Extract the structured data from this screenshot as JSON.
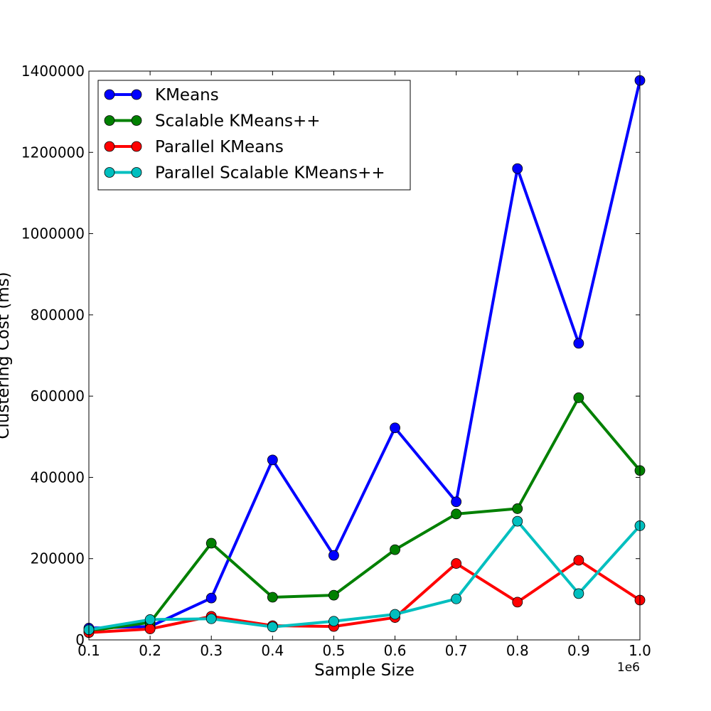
{
  "chart_data": {
    "type": "line",
    "title": "",
    "xlabel": "Sample Size",
    "ylabel": "Clustering Cost (ms)",
    "x_offset_label": "1e6",
    "x": [
      0.1,
      0.2,
      0.3,
      0.4,
      0.5,
      0.6,
      0.7,
      0.8,
      0.9,
      1.0
    ],
    "xlim": [
      0.1,
      1.0
    ],
    "ylim": [
      0,
      1400000
    ],
    "x_ticks": [
      "0.1",
      "0.2",
      "0.3",
      "0.4",
      "0.5",
      "0.6",
      "0.7",
      "0.8",
      "0.9",
      "1.0"
    ],
    "x_tick_values": [
      0.1,
      0.2,
      0.3,
      0.4,
      0.5,
      0.6,
      0.7,
      0.8,
      0.9,
      1.0
    ],
    "y_ticks": [
      "0",
      "200000",
      "400000",
      "600000",
      "800000",
      "1000000",
      "1200000",
      "1400000"
    ],
    "y_tick_values": [
      0,
      200000,
      400000,
      600000,
      800000,
      1000000,
      1200000,
      1400000
    ],
    "grid": false,
    "legend_position": "top-left",
    "series": [
      {
        "name": "KMeans",
        "color": "#0000ff",
        "values": [
          29000,
          33000,
          103000,
          443000,
          208000,
          522000,
          340000,
          1160000,
          730000,
          1377000
        ]
      },
      {
        "name": "Scalable KMeans++",
        "color": "#008000",
        "values": [
          22000,
          43000,
          238000,
          105000,
          110000,
          222000,
          310000,
          323000,
          596000,
          417000
        ]
      },
      {
        "name": "Parallel KMeans",
        "color": "#ff0000",
        "values": [
          18000,
          27000,
          58000,
          35000,
          33000,
          55000,
          188000,
          93000,
          196000,
          98000
        ]
      },
      {
        "name": "Parallel Scalable KMeans++",
        "color": "#00bfbf",
        "values": [
          25000,
          50000,
          52000,
          32000,
          46000,
          63000,
          101000,
          292000,
          114000,
          281000
        ]
      }
    ]
  }
}
